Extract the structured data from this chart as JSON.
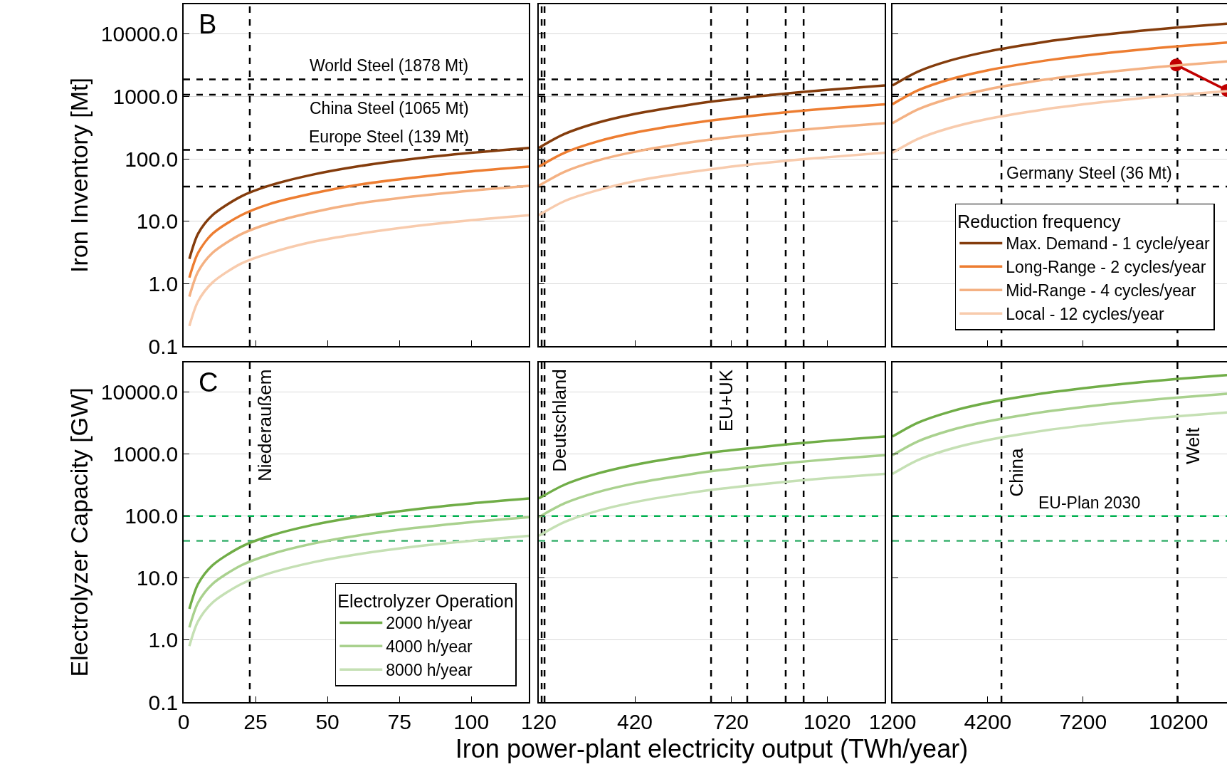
{
  "chart_data": [
    {
      "type": "line",
      "ylabel": "Iron Inventory [Mt]",
      "annotations": [
        "B"
      ],
      "log": "y",
      "grid": "y",
      "tick_labels": "y",
      "x": [
        2,
        5,
        10,
        20,
        30,
        45,
        60,
        80,
        100,
        120
      ],
      "xlim": [
        0,
        120
      ],
      "xticks": [
        0,
        25,
        50,
        75,
        100
      ],
      "ylim": [
        0.1,
        30000
      ],
      "yticks": [
        0.1,
        {
          "value": 1,
          "label": "1.0"
        },
        {
          "value": 10,
          "label": "10.0"
        },
        {
          "value": 100,
          "label": "100.0"
        },
        {
          "value": 1000,
          "label": "1000.0"
        },
        {
          "value": 10000,
          "label": "10000.0"
        }
      ],
      "series": [
        {
          "color": "#843c0c",
          "values": [
            2.5,
            6.3,
            12.5,
            25,
            37.5,
            56,
            75,
            100,
            125,
            150
          ]
        },
        {
          "color": "#ed7d31",
          "values": [
            1.25,
            3.1,
            6.3,
            12.5,
            19,
            28,
            38,
            50,
            63,
            75
          ]
        },
        {
          "color": "#f4b183",
          "values": [
            0.62,
            1.55,
            3.1,
            6.2,
            9.3,
            14,
            19,
            25,
            31,
            37
          ]
        },
        {
          "color": "#f8cbad",
          "values": [
            0.21,
            0.52,
            1.04,
            2.1,
            3.1,
            4.7,
            6.2,
            8.3,
            10.4,
            12.5
          ]
        }
      ],
      "ref_lines": [
        {
          "axis": "x",
          "value": 23,
          "line_style": "dashed"
        },
        {
          "axis": "y",
          "value": 1878,
          "label": "World Steel (1878 Mt)",
          "line_style": "dashed"
        },
        {
          "axis": "y",
          "value": 1065,
          "label": "China Steel (1065 Mt)",
          "line_style": "dashed"
        },
        {
          "axis": "y",
          "value": 139,
          "label": "Europe Steel (139 Mt)",
          "line_style": "dashed"
        },
        {
          "axis": "y",
          "value": 36,
          "line_style": "dashed"
        }
      ]
    },
    {
      "type": "line",
      "log": "y",
      "grid": "y",
      "tick_labels": false,
      "x": [
        120,
        200,
        300,
        420,
        600,
        720,
        900,
        1020,
        1200
      ],
      "xlim": [
        120,
        1200
      ],
      "xticks": [
        120,
        420,
        720,
        1020
      ],
      "ylim": [
        0.1,
        30000
      ],
      "yticks": [
        1,
        10,
        100,
        1000,
        10000
      ],
      "series": [
        {
          "color": "#843c0c",
          "values": [
            150,
            250,
            375,
            525,
            750,
            900,
            1125,
            1275,
            1500
          ]
        },
        {
          "color": "#ed7d31",
          "values": [
            75,
            125,
            188,
            263,
            375,
            450,
            563,
            638,
            750
          ]
        },
        {
          "color": "#f4b183",
          "values": [
            37,
            62,
            93,
            130,
            186,
            223,
            279,
            316,
            372
          ]
        },
        {
          "color": "#f8cbad",
          "values": [
            12.5,
            21,
            31,
            44,
            62,
            75,
            94,
            106,
            125
          ]
        }
      ],
      "ref_lines": [
        {
          "axis": "x",
          "value": 129,
          "line_style": "dashed"
        },
        {
          "axis": "x",
          "value": 138,
          "line_style": "dashed"
        },
        {
          "axis": "x",
          "value": 658,
          "line_style": "dashed"
        },
        {
          "axis": "x",
          "value": 771,
          "line_style": "dashed"
        },
        {
          "axis": "x",
          "value": 891,
          "line_style": "dashed"
        },
        {
          "axis": "x",
          "value": 947,
          "line_style": "dashed"
        },
        {
          "axis": "y",
          "value": 1878,
          "line_style": "dashed"
        },
        {
          "axis": "y",
          "value": 1065,
          "line_style": "dashed"
        },
        {
          "axis": "y",
          "value": 139,
          "line_style": "dashed"
        },
        {
          "axis": "y",
          "value": 36,
          "line_style": "dashed"
        }
      ]
    },
    {
      "type": "line",
      "log": "y",
      "grid": "y",
      "tick_labels": false,
      "legend": "bottom right",
      "legend_title": "Reduction frequency",
      "x": [
        1200,
        2000,
        3000,
        4200,
        6000,
        7200,
        9000,
        10200,
        11730
      ],
      "xlim": [
        1200,
        11730
      ],
      "xticks": [
        1200,
        4200,
        7200,
        10200
      ],
      "ylim": [
        0.1,
        30000
      ],
      "yticks": [
        1,
        10,
        100,
        1000,
        10000
      ],
      "series": [
        {
          "type": "line",
          "color": "#c00000",
          "marker": "circle",
          "x": [
            10130,
            11730
          ],
          "values": [
            3200,
            1250
          ]
        },
        {
          "name": "Max. Demand - 1 cycle/year",
          "color": "#843c0c",
          "values": [
            1500,
            2500,
            3750,
            5250,
            7500,
            9000,
            11250,
            12750,
            14660
          ]
        },
        {
          "name": "Long-Range - 2 cycles/year",
          "color": "#ed7d31",
          "values": [
            750,
            1250,
            1875,
            2625,
            3750,
            4500,
            5625,
            6375,
            7330
          ]
        },
        {
          "name": "Mid-Range - 4 cycles/year",
          "color": "#f4b183",
          "values": [
            372,
            620,
            930,
            1300,
            1860,
            2230,
            2790,
            3160,
            3640
          ]
        },
        {
          "name": "Local - 12 cycles/year",
          "color": "#f8cbad",
          "values": [
            125,
            208,
            312,
            437,
            624,
            749,
            936,
            1060,
            1220
          ]
        }
      ],
      "ref_lines": [
        {
          "axis": "x",
          "value": 4630,
          "line_style": "dashed"
        },
        {
          "axis": "x",
          "value": 10170,
          "line_style": "dashed"
        },
        {
          "axis": "y",
          "value": 1878,
          "line_style": "dashed"
        },
        {
          "axis": "y",
          "value": 1065,
          "line_style": "dashed"
        },
        {
          "axis": "y",
          "value": 139,
          "line_style": "dashed"
        },
        {
          "axis": "y",
          "value": 36,
          "label": "Germany Steel (36 Mt)",
          "line_style": "dashed"
        }
      ]
    },
    {
      "type": "line",
      "ylabel": "Electrolyzer Capacity [GW]",
      "annotations": [
        "C"
      ],
      "log": "y",
      "grid": "y",
      "legend": "bottom right",
      "legend_title": "Electrolyzer Operation",
      "x": [
        2,
        5,
        10,
        20,
        30,
        45,
        60,
        80,
        100,
        120
      ],
      "xlim": [
        0,
        120
      ],
      "xticks": [
        0,
        25,
        50,
        75,
        100
      ],
      "ylim": [
        0.1,
        30000
      ],
      "yticks": [
        0.1,
        {
          "value": 1,
          "label": "1.0"
        },
        {
          "value": 10,
          "label": "10.0"
        },
        {
          "value": 100,
          "label": "100.0"
        },
        {
          "value": 1000,
          "label": "1000.0"
        },
        {
          "value": 10000,
          "label": "10000.0"
        }
      ],
      "series": [
        {
          "name": "2000 h/year",
          "color": "#70ad47",
          "values": [
            3.2,
            8,
            16,
            32,
            48,
            72,
            96,
            128,
            160,
            192
          ]
        },
        {
          "name": "4000 h/year",
          "color": "#a9d18e",
          "values": [
            1.6,
            4,
            8,
            16,
            24,
            36,
            48,
            64,
            80,
            96
          ]
        },
        {
          "name": "8000 h/year",
          "color": "#c5e0b4",
          "values": [
            0.8,
            2,
            4,
            8,
            12,
            18,
            24,
            32,
            40,
            48
          ]
        }
      ],
      "ref_lines": [
        {
          "axis": "x",
          "value": 23,
          "label": "Niederaußem",
          "line_style": "dashed"
        },
        {
          "axis": "y",
          "value": 100,
          "color": "#00b050",
          "line_style": "dashed"
        },
        {
          "axis": "y",
          "value": 40,
          "color": "#3cb371",
          "line_style": "dashed"
        }
      ]
    },
    {
      "type": "line",
      "xlabel": "Iron power-plant electricity output (TWh/year)",
      "log": "y",
      "grid": "y",
      "tick_labels": "x",
      "x": [
        120,
        200,
        300,
        420,
        600,
        720,
        900,
        1020,
        1200
      ],
      "xlim": [
        120,
        1200
      ],
      "xticks": [
        120,
        420,
        720,
        1020
      ],
      "ylim": [
        0.1,
        30000
      ],
      "yticks": [
        1,
        10,
        100,
        1000,
        10000
      ],
      "series": [
        {
          "color": "#70ad47",
          "values": [
            192,
            320,
            480,
            672,
            960,
            1152,
            1440,
            1632,
            1920
          ]
        },
        {
          "color": "#a9d18e",
          "values": [
            96,
            160,
            240,
            336,
            480,
            576,
            720,
            816,
            960
          ]
        },
        {
          "color": "#c5e0b4",
          "values": [
            48,
            80,
            120,
            168,
            240,
            288,
            360,
            408,
            480
          ]
        }
      ],
      "ref_lines": [
        {
          "axis": "x",
          "value": 129,
          "line_style": "dashed"
        },
        {
          "axis": "x",
          "value": 138,
          "label": "Deutschland",
          "line_style": "dashed"
        },
        {
          "axis": "x",
          "value": 658,
          "label": "EU+UK",
          "line_style": "dashed"
        },
        {
          "axis": "x",
          "value": 771,
          "line_style": "dashed"
        },
        {
          "axis": "x",
          "value": 891,
          "line_style": "dashed"
        },
        {
          "axis": "x",
          "value": 947,
          "line_style": "dashed"
        },
        {
          "axis": "y",
          "value": 100,
          "color": "#00b050",
          "line_style": "dashed"
        },
        {
          "axis": "y",
          "value": 40,
          "color": "#3cb371",
          "line_style": "dashed"
        }
      ]
    },
    {
      "type": "line",
      "log": "y",
      "grid": "y",
      "tick_labels": "x",
      "x": [
        1200,
        2000,
        3000,
        4200,
        6000,
        7200,
        9000,
        10200,
        11730
      ],
      "xlim": [
        1200,
        11730
      ],
      "xticks": [
        1200,
        4200,
        7200,
        10200
      ],
      "ylim": [
        0.1,
        30000
      ],
      "yticks": [
        1,
        10,
        100,
        1000,
        10000
      ],
      "series": [
        {
          "color": "#70ad47",
          "values": [
            1920,
            3200,
            4800,
            6720,
            9600,
            11520,
            14400,
            16320,
            18770
          ]
        },
        {
          "color": "#a9d18e",
          "values": [
            960,
            1600,
            2400,
            3360,
            4800,
            5760,
            7200,
            8160,
            9380
          ]
        },
        {
          "color": "#c5e0b4",
          "values": [
            480,
            800,
            1200,
            1680,
            2400,
            2880,
            3600,
            4080,
            4690
          ]
        }
      ],
      "ref_lines": [
        {
          "axis": "x",
          "value": 4630,
          "label": "China",
          "line_style": "dashed"
        },
        {
          "axis": "x",
          "value": 10170,
          "label": "Welt",
          "line_style": "dashed"
        },
        {
          "axis": "y",
          "value": 100,
          "label": "EU-Plan 2030",
          "color": "#00b050",
          "line_style": "dashed"
        },
        {
          "axis": "y",
          "value": 40,
          "color": "#3cb371",
          "line_style": "dashed"
        }
      ]
    }
  ]
}
